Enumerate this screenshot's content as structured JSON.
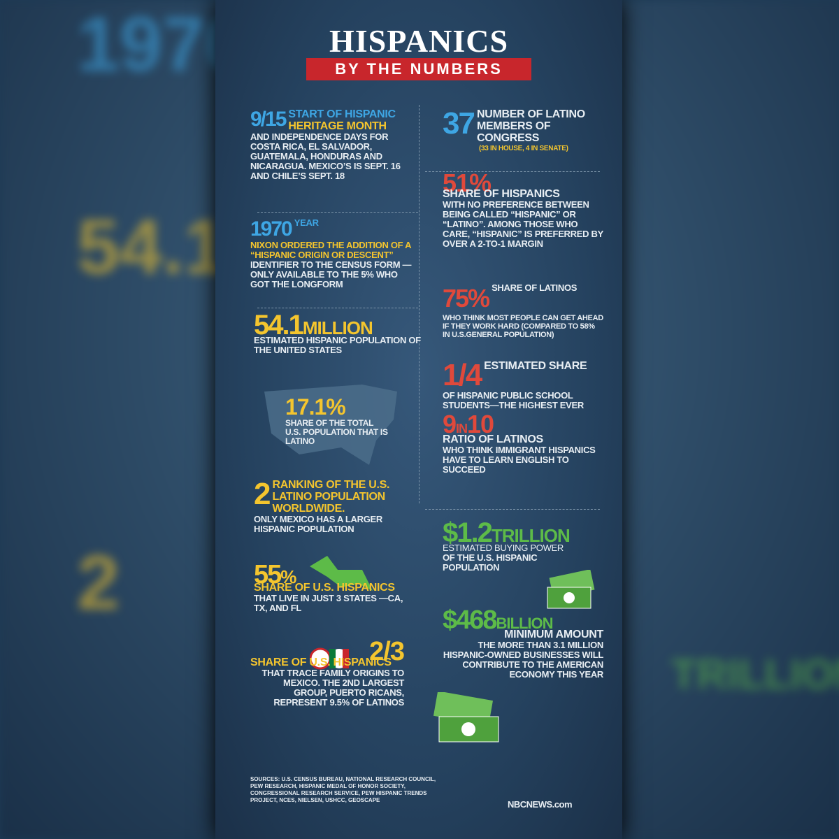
{
  "header": {
    "title": "HISPANICS",
    "subtitle": "BY THE NUMBERS"
  },
  "left": [
    {
      "stat": "9/15",
      "lead": "START OF HISPANIC",
      "highlight": "HERITAGE MONTH",
      "body": "AND INDEPENDENCE DAYS FOR COSTA RICA, EL SALVADOR, GUATEMALA, HONDURAS AND NICARAGUA. MEXICO’S IS SEPT. 16 AND CHILE’S SEPT. 18"
    },
    {
      "stat": "1970",
      "lead": "YEAR",
      "highlight": "NIXON ORDERED THE ADDITION OF A “HISPANIC ORIGIN OR DESCENT”",
      "body": "IDENTIFIER TO THE CENSUS FORM —ONLY AVAILABLE TO THE 5% WHO GOT THE LONGFORM"
    },
    {
      "stat": "54.1",
      "unit": "MILLION",
      "body": "ESTIMATED HISPANIC POPULATION OF THE UNITED STATES"
    },
    {
      "stat": "17.1%",
      "body": "SHARE OF THE TOTAL U.S. POPULATION THAT IS LATINO"
    },
    {
      "stat": "2",
      "lead": "RANKING OF THE U.S. LATINO POPULATION WORLDWIDE.",
      "body": "ONLY MEXICO HAS A LARGER HISPANIC POPULATION"
    },
    {
      "stat": "55",
      "unit": "%",
      "lead": "SHARE OF U.S. HISPANICS",
      "body": "THAT LIVE IN JUST 3 STATES —CA, TX, AND FL"
    },
    {
      "stat": "2/3",
      "lead": "SHARE OF U.S. HISPANICS",
      "body": "THAT TRACE FAMILY ORIGINS TO MEXICO. THE 2ND LARGEST GROUP, PUERTO RICANS, REPRESENT 9.5% OF LATINOS"
    }
  ],
  "right": [
    {
      "stat": "37",
      "lead": "NUMBER OF LATINO MEMBERS OF CONGRESS",
      "note": "(33 IN HOUSE, 4 IN SENATE)"
    },
    {
      "stat": "51%",
      "lead": "SHARE OF HISPANICS",
      "body": "WITH NO PREFERENCE BETWEEN BEING CALLED “HISPANIC” OR “LATINO”. AMONG THOSE WHO CARE, “HISPANIC” IS PREFERRED BY OVER A 2-TO-1 MARGIN"
    },
    {
      "stat": "75%",
      "lead": "SHARE OF LATINOS",
      "body": "WHO THINK MOST PEOPLE CAN GET AHEAD IF THEY WORK HARD (COMPARED TO 58% IN U.S.GENERAL POPULATION)"
    },
    {
      "stat": "1/4",
      "lead": "ESTIMATED SHARE",
      "body": "OF HISPANIC PUBLIC SCHOOL STUDENTS—THE HIGHEST EVER"
    },
    {
      "stat": "9",
      "unit": "IN",
      "stat2": "10",
      "lead": "RATIO OF LATINOS",
      "body": "WHO THINK IMMIGRANT HISPANICS HAVE TO LEARN ENGLISH TO SUCCEED"
    },
    {
      "stat": "$1.2",
      "unit": "TRILLION",
      "body": "ESTIMATED BUYING POWER",
      "lead": "OF THE U.S. HISPANIC POPULATION"
    },
    {
      "stat": "$468",
      "unit": "BILLION",
      "lead": "MINIMUM AMOUNT",
      "body": "THE MORE THAN 3.1 MILLION HISPANIC-OWNED BUSINESSES WILL CONTRIBUTE TO THE AMERICAN ECONOMY THIS YEAR"
    }
  ],
  "footer": {
    "sources": "SOURCES: U.S. CENSUS BUREAU, NATIONAL RESEARCH COUNCIL, PEW RESEARCH, HISPANIC MEDAL OF HONOR SOCIETY, CONGRESSIONAL RESEARCH SERVICE, PEW HISPANIC TRENDS PROJECT, NCES, NIELSEN, USHCC, GEOSCAPE",
    "logo": "NBCNEWS.com"
  }
}
